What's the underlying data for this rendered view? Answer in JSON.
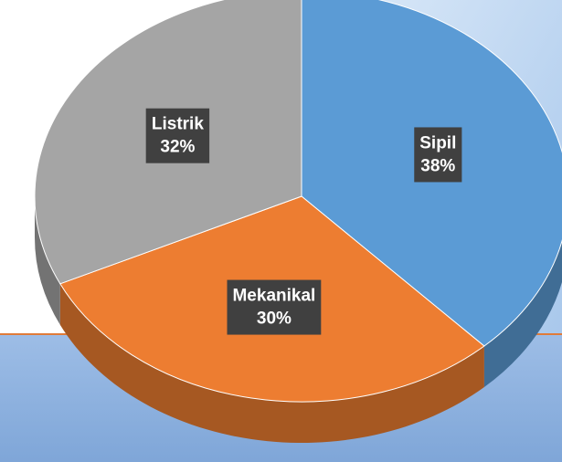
{
  "chart_data": {
    "type": "pie",
    "categories": [
      "Sipil",
      "Mekanikal",
      "Listrik"
    ],
    "values": [
      38,
      30,
      32
    ],
    "value_labels": [
      "38%",
      "30%",
      "32%"
    ],
    "colors": [
      "#5b9bd5",
      "#ed7d31",
      "#a5a5a5"
    ]
  }
}
